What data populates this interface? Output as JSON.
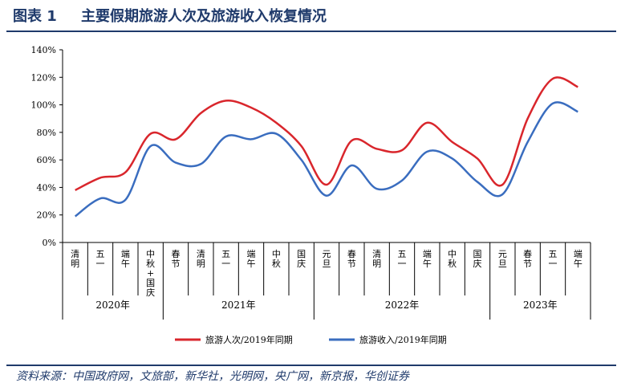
{
  "header": {
    "figure_number": "图表 1",
    "title": "主要假期旅游人次及旅游收入恢复情况"
  },
  "footer": {
    "source": "资料来源：中国政府网，文旅部，新华社，光明网，央广网，新京报，华创证券"
  },
  "colors": {
    "series_1": "#d9262c",
    "series_2": "#3a6dbf",
    "accent": "#1f3a6b"
  },
  "chart_data": {
    "type": "line",
    "title": "",
    "xlabel": "",
    "ylabel": "",
    "ylim": [
      0,
      140
    ],
    "yticks": [
      0,
      20,
      40,
      60,
      80,
      100,
      120,
      140
    ],
    "ytick_labels": [
      "0%",
      "20%",
      "40%",
      "60%",
      "80%",
      "100%",
      "120%",
      "140%"
    ],
    "grid": false,
    "legend_position": "bottom",
    "categories": [
      "清明",
      "五一",
      "端午",
      "中秋+国庆",
      "春节",
      "清明",
      "五一",
      "端午",
      "中秋",
      "国庆",
      "元旦",
      "春节",
      "清明",
      "五一",
      "端午",
      "中秋",
      "国庆",
      "元旦",
      "春节",
      "五一",
      "端午"
    ],
    "year_groups": [
      {
        "label": "2020年",
        "count": 4
      },
      {
        "label": "2021年",
        "count": 6
      },
      {
        "label": "2022年",
        "count": 7
      },
      {
        "label": "2023年",
        "count": 4
      }
    ],
    "series": [
      {
        "name": "旅游人次/2019年同期",
        "values": [
          38,
          47,
          51,
          79,
          75,
          94,
          103,
          98,
          87,
          70,
          42,
          74,
          68,
          67,
          87,
          73,
          61,
          42,
          90,
          119,
          113
        ]
      },
      {
        "name": "旅游收入/2019年同期",
        "values": [
          19,
          32,
          31,
          70,
          58,
          57,
          77,
          75,
          79,
          60,
          34,
          56,
          39,
          45,
          66,
          61,
          44,
          35,
          73,
          101,
          95
        ]
      }
    ]
  }
}
